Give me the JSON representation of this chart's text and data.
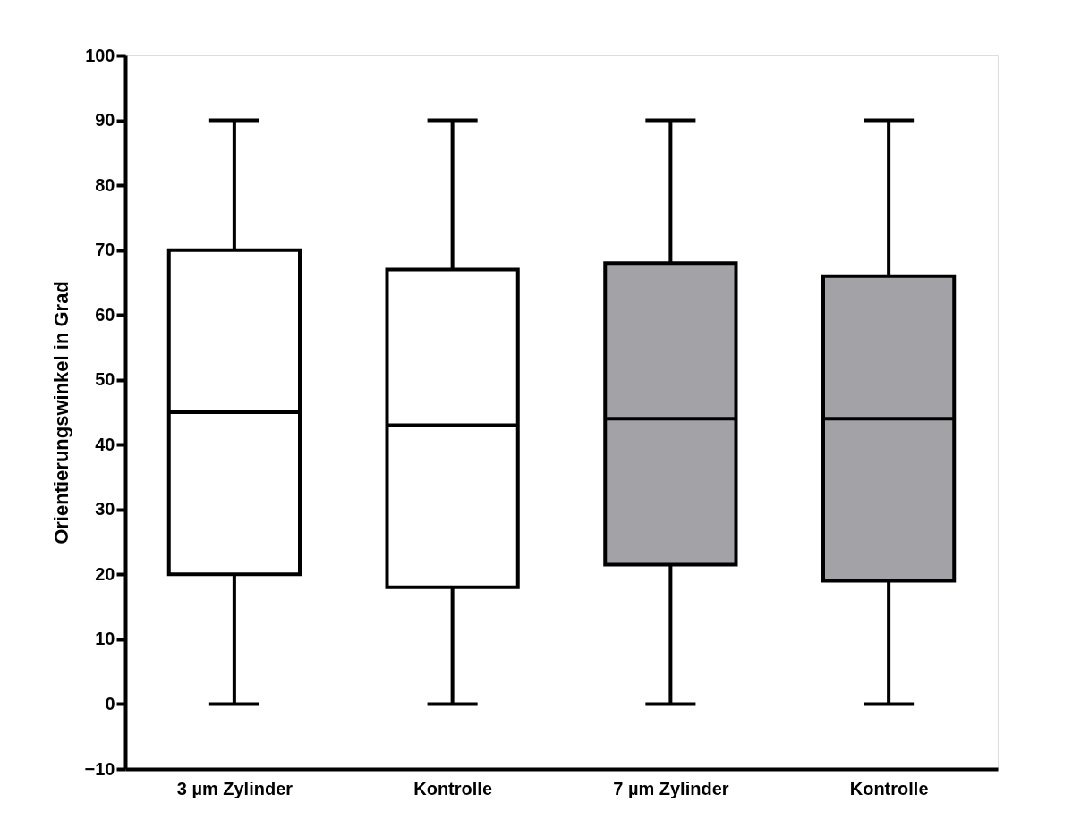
{
  "chart_data": {
    "type": "box",
    "ylabel": "Orientierungswinkel in Grad",
    "categories": [
      "3 µm Zylinder",
      "Kontrolle",
      "7 µm Zylinder",
      "Kontrolle"
    ],
    "boxes": [
      {
        "low": 0,
        "q1": 20,
        "median": 45,
        "q3": 70,
        "high": 90
      },
      {
        "low": 0,
        "q1": 18,
        "median": 43,
        "q3": 67,
        "high": 90
      },
      {
        "low": 0,
        "q1": 21.5,
        "median": 44,
        "q3": 68,
        "high": 90
      },
      {
        "low": 0,
        "q1": 19,
        "median": 44,
        "q3": 66,
        "high": 90
      }
    ],
    "colors": [
      "#ffffff",
      "#ffffff",
      "#a3a2a7",
      "#a3a2a7"
    ],
    "ylim": [
      -10,
      100
    ],
    "yticks": [
      -10,
      0,
      10,
      20,
      30,
      40,
      50,
      60,
      70,
      80,
      90,
      100
    ],
    "grid": false,
    "legend": false
  }
}
